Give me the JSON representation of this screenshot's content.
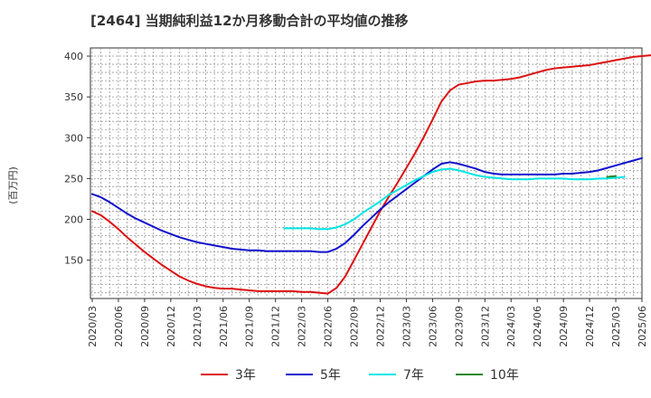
{
  "chart_data": {
    "type": "line",
    "title": "[2464]  当期純利益12か月移動合計の平均値の推移",
    "ylabel": "(百万円)",
    "xlabel": "",
    "ylim": [
      103,
      410
    ],
    "yticks": [
      150,
      200,
      250,
      300,
      350,
      400
    ],
    "x_tick_labels": [
      "2020/03",
      "2020/06",
      "2020/09",
      "2020/12",
      "2021/03",
      "2021/06",
      "2021/09",
      "2021/12",
      "2022/03",
      "2022/06",
      "2022/09",
      "2022/12",
      "2023/03",
      "2023/06",
      "2023/09",
      "2023/12",
      "2024/03",
      "2024/06",
      "2024/09",
      "2024/12",
      "2025/03",
      "2025/06"
    ],
    "grid": true,
    "legend_position": "bottom",
    "series": [
      {
        "name": "3年",
        "color": "#dd1111",
        "start": "2020/03",
        "values": [
          210,
          205,
          197,
          188,
          178,
          169,
          160,
          152,
          144,
          137,
          130,
          125,
          121,
          118,
          116,
          115,
          115,
          114,
          113,
          112,
          112,
          112,
          112,
          112,
          111,
          111,
          110,
          109,
          116,
          130,
          150,
          170,
          190,
          210,
          228,
          245,
          263,
          281,
          301,
          322,
          344,
          358,
          365,
          367,
          369,
          370,
          370,
          371,
          372,
          374,
          377,
          380,
          383,
          385,
          386,
          387,
          388,
          389,
          391,
          393,
          395,
          397,
          399,
          400,
          401,
          401
        ]
      },
      {
        "name": "5年",
        "color": "#1111cc",
        "start": "2020/03",
        "values": [
          231,
          227,
          221,
          214,
          207,
          201,
          196,
          191,
          186,
          182,
          178,
          175,
          172,
          170,
          168,
          166,
          164,
          163,
          162,
          162,
          161,
          161,
          161,
          161,
          161,
          161,
          160,
          160,
          164,
          171,
          181,
          192,
          202,
          212,
          221,
          229,
          237,
          245,
          253,
          261,
          268,
          270,
          268,
          265,
          262,
          258,
          256,
          255,
          255,
          255,
          255,
          255,
          255,
          255,
          256,
          256,
          257,
          258,
          260,
          263,
          266,
          269,
          272,
          275
        ]
      },
      {
        "name": "7年",
        "color": "#00e5e5",
        "start": "2022/01",
        "values": [
          189,
          189,
          189,
          189,
          188,
          188,
          190,
          194,
          200,
          208,
          215,
          222,
          230,
          236,
          242,
          248,
          253,
          258,
          261,
          262,
          260,
          257,
          254,
          252,
          251,
          250,
          249,
          249,
          249,
          250,
          250,
          250,
          250,
          249,
          249,
          249,
          250,
          250,
          251,
          252
        ]
      },
      {
        "name": "10年",
        "color": "#228822",
        "start": "2025/02",
        "values": [
          252,
          253
        ]
      }
    ]
  }
}
